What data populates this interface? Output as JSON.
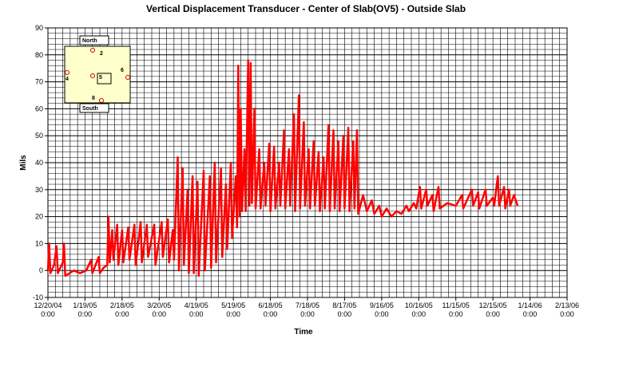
{
  "chart_data": {
    "type": "line",
    "title": "Vertical Displacement Transducer - Center of Slab(OV5) - Outside Slab",
    "xlabel": "Time",
    "ylabel": "Mils",
    "ylim": [
      -10,
      90
    ],
    "yticks": [
      -10,
      0,
      10,
      20,
      30,
      40,
      50,
      60,
      70,
      80,
      90
    ],
    "xlim": [
      "2004-12-20",
      "2006-02-13"
    ],
    "xticks": [
      {
        "date": "2004-12-20",
        "line1": "12/20/04",
        "line2": "0:00"
      },
      {
        "date": "2005-01-19",
        "line1": "1/19/05",
        "line2": "0:00"
      },
      {
        "date": "2005-02-18",
        "line1": "2/18/05",
        "line2": "0:00"
      },
      {
        "date": "2005-03-20",
        "line1": "3/20/05",
        "line2": "0:00"
      },
      {
        "date": "2005-04-19",
        "line1": "4/19/05",
        "line2": "0:00"
      },
      {
        "date": "2005-05-19",
        "line1": "5/19/05",
        "line2": "0:00"
      },
      {
        "date": "2005-06-18",
        "line1": "6/18/05",
        "line2": "0:00"
      },
      {
        "date": "2005-07-18",
        "line1": "7/18/05",
        "line2": "0:00"
      },
      {
        "date": "2005-08-17",
        "line1": "8/17/05",
        "line2": "0:00"
      },
      {
        "date": "2005-09-16",
        "line1": "9/16/05",
        "line2": "0:00"
      },
      {
        "date": "2005-10-16",
        "line1": "10/16/05",
        "line2": "0:00"
      },
      {
        "date": "2005-11-15",
        "line1": "11/15/05",
        "line2": "0:00"
      },
      {
        "date": "2005-12-15",
        "line1": "12/15/05",
        "line2": "0:00"
      },
      {
        "date": "2006-01-14",
        "line1": "1/14/06",
        "line2": "0:00"
      },
      {
        "date": "2006-02-13",
        "line1": "2/13/06",
        "line2": "0:00"
      }
    ],
    "grid": true,
    "series": [
      {
        "color": "#ff0000",
        "points": [
          [
            "2004-12-20",
            0
          ],
          [
            "2004-12-21",
            10
          ],
          [
            "2004-12-22",
            -1
          ],
          [
            "2004-12-25",
            2
          ],
          [
            "2004-12-27",
            9
          ],
          [
            "2004-12-28",
            -1
          ],
          [
            "2005-01-01",
            3
          ],
          [
            "2005-01-02",
            10
          ],
          [
            "2005-01-03",
            -2
          ],
          [
            "2005-01-10",
            0
          ],
          [
            "2005-01-15",
            -1
          ],
          [
            "2005-01-20",
            0
          ],
          [
            "2005-01-24",
            4
          ],
          [
            "2005-01-25",
            -1
          ],
          [
            "2005-01-30",
            5
          ],
          [
            "2005-01-31",
            -1
          ],
          [
            "2005-02-03",
            1
          ],
          [
            "2005-02-06",
            2
          ],
          [
            "2005-02-07",
            20
          ],
          [
            "2005-02-08",
            3
          ],
          [
            "2005-02-10",
            15
          ],
          [
            "2005-02-11",
            4
          ],
          [
            "2005-02-14",
            17
          ],
          [
            "2005-02-15",
            2
          ],
          [
            "2005-02-18",
            15
          ],
          [
            "2005-02-19",
            3
          ],
          [
            "2005-02-23",
            16
          ],
          [
            "2005-02-24",
            4
          ],
          [
            "2005-02-28",
            17
          ],
          [
            "2005-03-01",
            2
          ],
          [
            "2005-03-05",
            18
          ],
          [
            "2005-03-06",
            3
          ],
          [
            "2005-03-10",
            17
          ],
          [
            "2005-03-11",
            5
          ],
          [
            "2005-03-16",
            17
          ],
          [
            "2005-03-17",
            2
          ],
          [
            "2005-03-22",
            18
          ],
          [
            "2005-03-23",
            5
          ],
          [
            "2005-03-27",
            19
          ],
          [
            "2005-03-28",
            3
          ],
          [
            "2005-03-31",
            15
          ],
          [
            "2005-04-01",
            4
          ],
          [
            "2005-04-04",
            42
          ],
          [
            "2005-04-05",
            0
          ],
          [
            "2005-04-08",
            38
          ],
          [
            "2005-04-09",
            2
          ],
          [
            "2005-04-12",
            30
          ],
          [
            "2005-04-13",
            -1
          ],
          [
            "2005-04-16",
            35
          ],
          [
            "2005-04-17",
            -1
          ],
          [
            "2005-04-20",
            33
          ],
          [
            "2005-04-21",
            -2
          ],
          [
            "2005-04-25",
            37
          ],
          [
            "2005-04-26",
            0
          ],
          [
            "2005-04-30",
            35
          ],
          [
            "2005-05-01",
            1
          ],
          [
            "2005-05-04",
            40
          ],
          [
            "2005-05-05",
            3
          ],
          [
            "2005-05-09",
            38
          ],
          [
            "2005-05-10",
            5
          ],
          [
            "2005-05-13",
            32
          ],
          [
            "2005-05-14",
            8
          ],
          [
            "2005-05-17",
            40
          ],
          [
            "2005-05-18",
            12
          ],
          [
            "2005-05-21",
            35
          ],
          [
            "2005-05-22",
            16
          ],
          [
            "2005-05-23",
            76
          ],
          [
            "2005-05-24",
            20
          ],
          [
            "2005-05-25",
            60
          ],
          [
            "2005-05-26",
            22
          ],
          [
            "2005-05-28",
            45
          ],
          [
            "2005-05-29",
            22
          ],
          [
            "2005-05-31",
            78
          ],
          [
            "2005-06-01",
            24
          ],
          [
            "2005-06-02",
            77
          ],
          [
            "2005-06-03",
            25
          ],
          [
            "2005-06-05",
            60
          ],
          [
            "2005-06-06",
            23
          ],
          [
            "2005-06-09",
            45
          ],
          [
            "2005-06-10",
            23
          ],
          [
            "2005-06-13",
            40
          ],
          [
            "2005-06-14",
            24
          ],
          [
            "2005-06-17",
            47
          ],
          [
            "2005-06-18",
            22
          ],
          [
            "2005-06-21",
            46
          ],
          [
            "2005-06-22",
            23
          ],
          [
            "2005-06-25",
            40
          ],
          [
            "2005-06-26",
            24
          ],
          [
            "2005-06-29",
            52
          ],
          [
            "2005-06-30",
            23
          ],
          [
            "2005-07-03",
            45
          ],
          [
            "2005-07-04",
            24
          ],
          [
            "2005-07-07",
            58
          ],
          [
            "2005-07-08",
            22
          ],
          [
            "2005-07-11",
            65
          ],
          [
            "2005-07-12",
            23
          ],
          [
            "2005-07-15",
            55
          ],
          [
            "2005-07-16",
            24
          ],
          [
            "2005-07-19",
            45
          ],
          [
            "2005-07-20",
            23
          ],
          [
            "2005-07-23",
            48
          ],
          [
            "2005-07-24",
            24
          ],
          [
            "2005-07-27",
            44
          ],
          [
            "2005-07-28",
            22
          ],
          [
            "2005-07-31",
            42
          ],
          [
            "2005-08-01",
            23
          ],
          [
            "2005-08-04",
            54
          ],
          [
            "2005-08-05",
            22
          ],
          [
            "2005-08-08",
            52
          ],
          [
            "2005-08-09",
            23
          ],
          [
            "2005-08-12",
            48
          ],
          [
            "2005-08-13",
            22
          ],
          [
            "2005-08-16",
            50
          ],
          [
            "2005-08-17",
            23
          ],
          [
            "2005-08-20",
            53
          ],
          [
            "2005-08-21",
            22
          ],
          [
            "2005-08-24",
            48
          ],
          [
            "2005-08-25",
            23
          ],
          [
            "2005-08-27",
            52
          ],
          [
            "2005-08-28",
            21
          ],
          [
            "2005-09-01",
            28
          ],
          [
            "2005-09-04",
            22
          ],
          [
            "2005-09-08",
            26
          ],
          [
            "2005-09-10",
            21
          ],
          [
            "2005-09-14",
            24
          ],
          [
            "2005-09-16",
            20
          ],
          [
            "2005-09-20",
            23
          ],
          [
            "2005-09-24",
            20
          ],
          [
            "2005-09-28",
            22
          ],
          [
            "2005-10-02",
            21
          ],
          [
            "2005-10-06",
            24
          ],
          [
            "2005-10-08",
            22
          ],
          [
            "2005-10-12",
            25
          ],
          [
            "2005-10-14",
            23
          ],
          [
            "2005-10-17",
            31
          ],
          [
            "2005-10-18",
            23
          ],
          [
            "2005-10-22",
            30
          ],
          [
            "2005-10-23",
            24
          ],
          [
            "2005-10-27",
            28
          ],
          [
            "2005-10-28",
            22
          ],
          [
            "2005-11-01",
            31
          ],
          [
            "2005-11-02",
            23
          ],
          [
            "2005-11-08",
            25
          ],
          [
            "2005-11-15",
            24
          ],
          [
            "2005-11-20",
            28
          ],
          [
            "2005-11-21",
            23
          ],
          [
            "2005-11-28",
            30
          ],
          [
            "2005-11-29",
            24
          ],
          [
            "2005-12-03",
            29
          ],
          [
            "2005-12-04",
            23
          ],
          [
            "2005-12-09",
            30
          ],
          [
            "2005-12-10",
            24
          ],
          [
            "2005-12-15",
            27
          ],
          [
            "2005-12-16",
            24
          ],
          [
            "2005-12-19",
            35
          ],
          [
            "2005-12-20",
            24
          ],
          [
            "2005-12-24",
            31
          ],
          [
            "2005-12-25",
            23
          ],
          [
            "2005-12-28",
            30
          ],
          [
            "2005-12-29",
            24
          ],
          [
            "2006-01-01",
            28
          ],
          [
            "2006-01-04",
            24
          ]
        ]
      }
    ],
    "inset": {
      "north_label": "North",
      "south_label": "South",
      "markers": [
        "2",
        "4",
        "5",
        "6",
        "8"
      ]
    }
  }
}
